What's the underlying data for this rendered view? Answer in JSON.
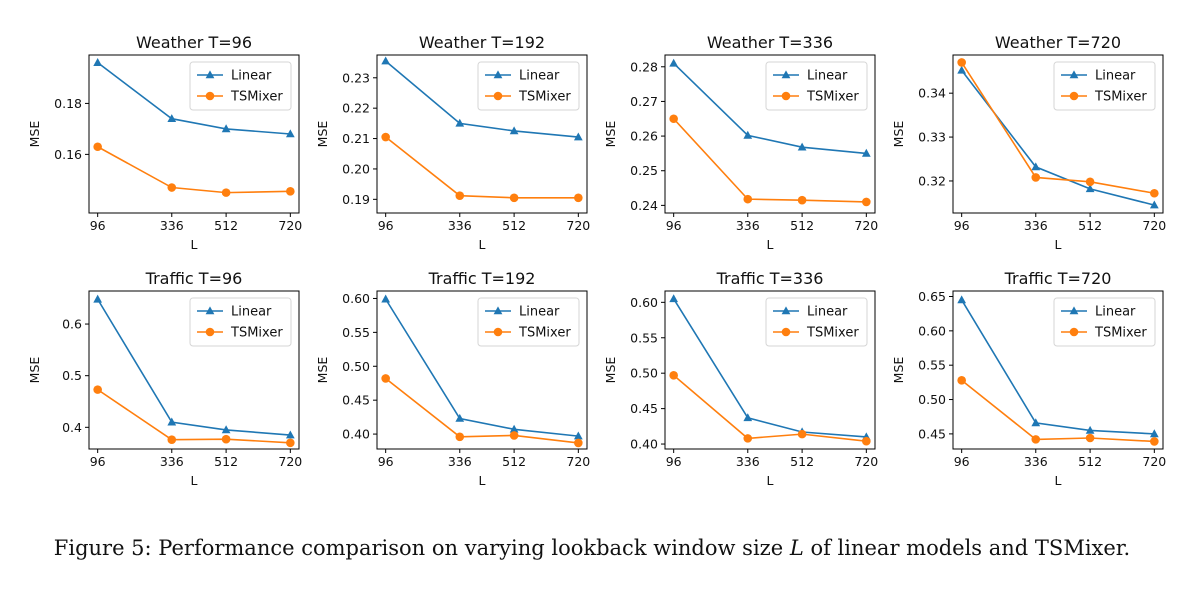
{
  "caption": {
    "prefix": "Figure 5: Performance comparison on varying lookback window size ",
    "variable": "L",
    "suffix": " of linear models and TSMixer."
  },
  "colors": {
    "linear": "#1f77b4",
    "tsmixer": "#ff7f0e"
  },
  "chart_data": [
    {
      "type": "line",
      "title": "Weather T=96",
      "xlabel": "L",
      "ylabel": "MSE",
      "x": [
        96,
        336,
        512,
        720
      ],
      "xticks": [
        96,
        336,
        512,
        720
      ],
      "ylim": [
        0.137,
        0.199
      ],
      "yticks": [
        0.16,
        0.18
      ],
      "legend": "top-right",
      "series": [
        {
          "name": "Linear",
          "marker": "triangle",
          "values": [
            0.196,
            0.174,
            0.17,
            0.168
          ]
        },
        {
          "name": "TSMixer",
          "marker": "circle",
          "values": [
            0.163,
            0.147,
            0.145,
            0.1455
          ]
        }
      ]
    },
    {
      "type": "line",
      "title": "Weather T=192",
      "xlabel": "L",
      "ylabel": "MSE",
      "x": [
        96,
        336,
        512,
        720
      ],
      "xticks": [
        96,
        336,
        512,
        720
      ],
      "ylim": [
        0.1855,
        0.2375
      ],
      "yticks": [
        0.19,
        0.2,
        0.21,
        0.22,
        0.23
      ],
      "legend": "top-right",
      "series": [
        {
          "name": "Linear",
          "marker": "triangle",
          "values": [
            0.2355,
            0.215,
            0.2125,
            0.2105
          ]
        },
        {
          "name": "TSMixer",
          "marker": "circle",
          "values": [
            0.2105,
            0.1912,
            0.1905,
            0.1905
          ]
        }
      ]
    },
    {
      "type": "line",
      "title": "Weather T=336",
      "xlabel": "L",
      "ylabel": "MSE",
      "x": [
        96,
        336,
        512,
        720
      ],
      "xticks": [
        96,
        336,
        512,
        720
      ],
      "ylim": [
        0.2378,
        0.2834
      ],
      "yticks": [
        0.24,
        0.25,
        0.26,
        0.27,
        0.28
      ],
      "legend": "top-right",
      "series": [
        {
          "name": "Linear",
          "marker": "triangle",
          "values": [
            0.281,
            0.2602,
            0.2568,
            0.255
          ]
        },
        {
          "name": "TSMixer",
          "marker": "circle",
          "values": [
            0.265,
            0.2418,
            0.2415,
            0.241
          ]
        }
      ]
    },
    {
      "type": "line",
      "title": "Weather T=720",
      "xlabel": "L",
      "ylabel": "MSE",
      "x": [
        96,
        336,
        512,
        720
      ],
      "xticks": [
        96,
        336,
        512,
        720
      ],
      "ylim": [
        0.3127,
        0.3487
      ],
      "yticks": [
        0.32,
        0.33,
        0.34
      ],
      "legend": "top-right",
      "series": [
        {
          "name": "Linear",
          "marker": "triangle",
          "values": [
            0.3452,
            0.3232,
            0.3182,
            0.3145
          ]
        },
        {
          "name": "TSMixer",
          "marker": "circle",
          "values": [
            0.347,
            0.3208,
            0.3198,
            0.3172
          ]
        }
      ]
    },
    {
      "type": "line",
      "title": "Traffic T=96",
      "xlabel": "L",
      "ylabel": "MSE",
      "x": [
        96,
        336,
        512,
        720
      ],
      "xticks": [
        96,
        336,
        512,
        720
      ],
      "ylim": [
        0.358,
        0.664
      ],
      "yticks": [
        0.4,
        0.5,
        0.6
      ],
      "legend": "top-right",
      "series": [
        {
          "name": "Linear",
          "marker": "triangle",
          "values": [
            0.648,
            0.41,
            0.395,
            0.385
          ]
        },
        {
          "name": "TSMixer",
          "marker": "circle",
          "values": [
            0.473,
            0.376,
            0.377,
            0.37
          ]
        }
      ]
    },
    {
      "type": "line",
      "title": "Traffic T=192",
      "xlabel": "L",
      "ylabel": "MSE",
      "x": [
        96,
        336,
        512,
        720
      ],
      "xticks": [
        96,
        336,
        512,
        720
      ],
      "ylim": [
        0.378,
        0.611
      ],
      "yticks": [
        0.4,
        0.45,
        0.5,
        0.55,
        0.6
      ],
      "legend": "top-right",
      "series": [
        {
          "name": "Linear",
          "marker": "triangle",
          "values": [
            0.599,
            0.423,
            0.407,
            0.397
          ]
        },
        {
          "name": "TSMixer",
          "marker": "circle",
          "values": [
            0.482,
            0.396,
            0.398,
            0.387
          ]
        }
      ]
    },
    {
      "type": "line",
      "title": "Traffic T=336",
      "xlabel": "L",
      "ylabel": "MSE",
      "x": [
        96,
        336,
        512,
        720
      ],
      "xticks": [
        96,
        336,
        512,
        720
      ],
      "ylim": [
        0.393,
        0.616
      ],
      "yticks": [
        0.4,
        0.45,
        0.5,
        0.55,
        0.6
      ],
      "legend": "top-right",
      "series": [
        {
          "name": "Linear",
          "marker": "triangle",
          "values": [
            0.605,
            0.437,
            0.417,
            0.41
          ]
        },
        {
          "name": "TSMixer",
          "marker": "circle",
          "values": [
            0.497,
            0.408,
            0.414,
            0.404
          ]
        }
      ]
    },
    {
      "type": "line",
      "title": "Traffic T=720",
      "xlabel": "L",
      "ylabel": "MSE",
      "x": [
        96,
        336,
        512,
        720
      ],
      "xticks": [
        96,
        336,
        512,
        720
      ],
      "ylim": [
        0.428,
        0.658
      ],
      "yticks": [
        0.45,
        0.5,
        0.55,
        0.6,
        0.65
      ],
      "legend": "top-right",
      "series": [
        {
          "name": "Linear",
          "marker": "triangle",
          "values": [
            0.645,
            0.466,
            0.455,
            0.45
          ]
        },
        {
          "name": "TSMixer",
          "marker": "circle",
          "values": [
            0.528,
            0.442,
            0.444,
            0.439
          ]
        }
      ]
    }
  ]
}
